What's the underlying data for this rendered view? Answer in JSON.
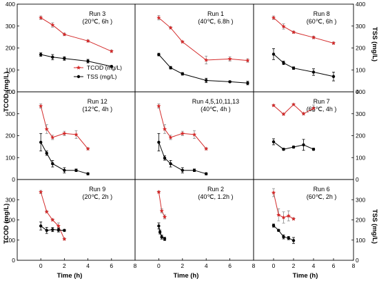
{
  "axes": {
    "ylabel_left": "TCOD (mg/L)",
    "ylabel_right": "TSS (mg/L)",
    "xlabel": "Time (h)",
    "xlim": [
      -2,
      8
    ],
    "ylim": [
      0,
      400
    ],
    "xticks": [
      "0",
      "2",
      "4",
      "6",
      "8"
    ],
    "yticks": [
      "0",
      "100",
      "200",
      "300",
      "400"
    ]
  },
  "legend": {
    "tcod": "TCOD (mg/L)",
    "tss": "TSS (mg/L)"
  },
  "colors": {
    "tcod": "#d42a2a",
    "tss": "#000000"
  },
  "chart_data": {
    "type": "line",
    "layout": "3x3 panels",
    "legend_position": "upper-left panel, middle-left",
    "series_names": [
      "TCOD (mg/L)",
      "TSS (mg/L)"
    ],
    "panels": [
      {
        "run": "Run 3",
        "cond": "(20℃, 6h )",
        "tcod": {
          "x": [
            0,
            1,
            2,
            4,
            6
          ],
          "y": [
            338,
            305,
            262,
            232,
            185
          ],
          "err": [
            8,
            10,
            6,
            5,
            5
          ]
        },
        "tss": {
          "x": [
            0,
            1,
            2,
            4,
            6
          ],
          "y": [
            170,
            158,
            152,
            140,
            116
          ],
          "err": [
            8,
            12,
            8,
            8,
            4
          ]
        }
      },
      {
        "run": "Run 1",
        "cond": "(40℃, 6.8h )",
        "tcod": {
          "x": [
            0,
            1,
            2,
            4,
            6,
            7.5
          ],
          "y": [
            338,
            292,
            228,
            145,
            150,
            143
          ],
          "err": [
            10,
            5,
            4,
            18,
            10,
            8
          ]
        },
        "tss": {
          "x": [
            0,
            1,
            2,
            4,
            6,
            7.5
          ],
          "y": [
            170,
            110,
            82,
            52,
            46,
            40
          ],
          "err": [
            6,
            6,
            6,
            10,
            4,
            8
          ]
        }
      },
      {
        "run": "Run 8",
        "cond": "(60℃, 6h )",
        "tcod": {
          "x": [
            0,
            1,
            2,
            4,
            6
          ],
          "y": [
            338,
            298,
            272,
            248,
            222
          ],
          "err": [
            8,
            12,
            5,
            6,
            5
          ]
        },
        "tss": {
          "x": [
            0,
            1,
            2,
            4,
            6
          ],
          "y": [
            172,
            132,
            108,
            90,
            70
          ],
          "err": [
            25,
            8,
            6,
            15,
            20
          ]
        }
      },
      {
        "run": "Run 12",
        "cond": "(12℃, 4h )",
        "tcod": {
          "x": [
            0,
            0.5,
            1,
            2,
            3,
            4
          ],
          "y": [
            335,
            230,
            192,
            210,
            205,
            140
          ],
          "err": [
            10,
            20,
            10,
            10,
            18,
            5
          ]
        },
        "tss": {
          "x": [
            0,
            0.5,
            1,
            2,
            3,
            4
          ],
          "y": [
            170,
            120,
            72,
            42,
            42,
            26
          ],
          "err": [
            40,
            10,
            15,
            12,
            6,
            5
          ]
        }
      },
      {
        "run": "Run 4,5,10,11,13",
        "cond": "(40℃, 4h )",
        "tcod": {
          "x": [
            0,
            0.5,
            1,
            2,
            3,
            4
          ],
          "y": [
            335,
            230,
            192,
            210,
            205,
            140
          ],
          "err": [
            10,
            20,
            10,
            10,
            18,
            5
          ]
        },
        "tss": {
          "x": [
            0,
            0.5,
            1,
            2,
            3,
            4
          ],
          "y": [
            170,
            98,
            72,
            42,
            42,
            26
          ],
          "err": [
            40,
            10,
            15,
            12,
            6,
            5
          ]
        }
      },
      {
        "run": "Run 7",
        "cond": "(68℃, 4h )",
        "tcod": {
          "x": [
            0,
            1,
            2,
            3,
            4
          ],
          "y": [
            338,
            298,
            342,
            300,
            325
          ],
          "err": [
            4,
            4,
            4,
            5,
            15
          ]
        },
        "tss": {
          "x": [
            0,
            1,
            2,
            3,
            4
          ],
          "y": [
            172,
            138,
            148,
            158,
            138
          ],
          "err": [
            14,
            5,
            5,
            25,
            5
          ]
        }
      },
      {
        "run": "Run 9",
        "cond": "(20℃, 2h )",
        "tcod": {
          "x": [
            0,
            0.5,
            1,
            1.5,
            2
          ],
          "y": [
            338,
            240,
            200,
            170,
            105
          ],
          "err": [
            8,
            5,
            5,
            15,
            5
          ]
        },
        "tss": {
          "x": [
            0,
            0.5,
            1,
            1.5,
            2
          ],
          "y": [
            170,
            148,
            152,
            150,
            148
          ],
          "err": [
            20,
            15,
            10,
            10,
            5
          ]
        }
      },
      {
        "run": "Run 2",
        "cond": "(40℃, 1.2h )",
        "tcod": {
          "x": [
            0,
            0.25,
            0.5
          ],
          "y": [
            338,
            245,
            215
          ],
          "err": [
            5,
            10,
            10
          ]
        },
        "tss": {
          "x": [
            0,
            0.1,
            0.25,
            0.5
          ],
          "y": [
            170,
            140,
            115,
            106
          ],
          "err": [
            15,
            10,
            10,
            8
          ]
        }
      },
      {
        "run": "Run 6",
        "cond": "(60℃, 2h )",
        "tcod": {
          "x": [
            0,
            0.5,
            1,
            1.5,
            2
          ],
          "y": [
            335,
            225,
            212,
            220,
            205
          ],
          "err": [
            20,
            30,
            28,
            25,
            5
          ]
        },
        "tss": {
          "x": [
            0,
            0.5,
            1,
            1.5,
            2
          ],
          "y": [
            172,
            148,
            116,
            110,
            98
          ],
          "err": [
            8,
            5,
            10,
            8,
            15
          ]
        }
      }
    ]
  }
}
